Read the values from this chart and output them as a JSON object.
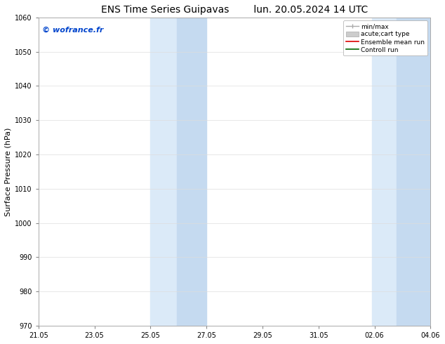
{
  "title_left": "ENS Time Series Guipavas",
  "title_right": "lun. 20.05.2024 14 UTC",
  "ylabel": "Surface Pressure (hPa)",
  "ylim": [
    970,
    1060
  ],
  "yticks": [
    970,
    980,
    990,
    1000,
    1010,
    1020,
    1030,
    1040,
    1050,
    1060
  ],
  "xlim_start": 0,
  "xlim_end": 14,
  "xtick_labels": [
    "21.05",
    "23.05",
    "25.05",
    "27.05",
    "29.05",
    "31.05",
    "02.06",
    "04.06"
  ],
  "xtick_positions": [
    0,
    2,
    4,
    6,
    8,
    10,
    12,
    14
  ],
  "shaded_regions": [
    {
      "xmin": 4.0,
      "xmax": 4.95,
      "color": "#dbeaf8"
    },
    {
      "xmin": 4.95,
      "xmax": 6.0,
      "color": "#c5daf0"
    },
    {
      "xmin": 11.9,
      "xmax": 12.8,
      "color": "#dbeaf8"
    },
    {
      "xmin": 12.8,
      "xmax": 14.0,
      "color": "#c5daf0"
    }
  ],
  "watermark": "© wofrance.fr",
  "watermark_color": "#0044cc",
  "legend_entries": [
    {
      "label": "min/max",
      "color": "#aaaaaa",
      "lw": 1
    },
    {
      "label": "acute;cart type",
      "color": "#cccccc",
      "lw": 5
    },
    {
      "label": "Ensemble mean run",
      "color": "#dd0000",
      "lw": 1.2
    },
    {
      "label": "Controll run",
      "color": "#006600",
      "lw": 1.2
    }
  ],
  "bg_color": "#ffffff",
  "plot_bg_color": "#ffffff",
  "grid_color": "#dddddd",
  "title_fontsize": 10,
  "ylabel_fontsize": 8,
  "tick_fontsize": 7,
  "watermark_fontsize": 8,
  "legend_fontsize": 6.5
}
